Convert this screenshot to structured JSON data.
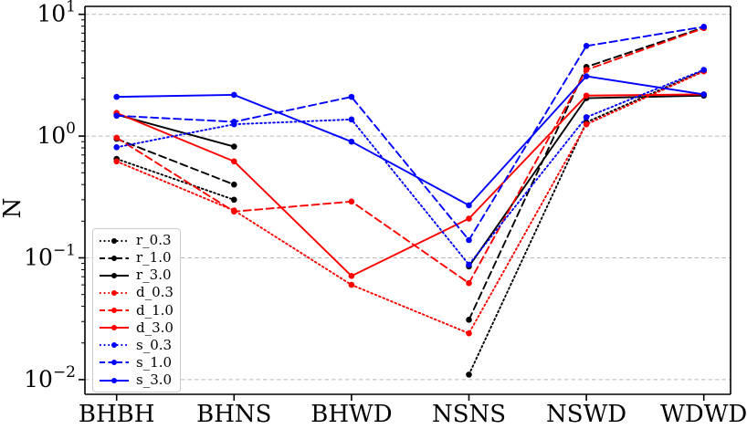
{
  "chart_data": {
    "type": "line",
    "title": "",
    "xlabel": "",
    "ylabel": "N",
    "yscale": "log",
    "ylim": [
      0.0076,
      11.6
    ],
    "y_tick_exponents": [
      1,
      0,
      -1,
      -2
    ],
    "grid": "horizontal dashed gridlines at powers of ten",
    "legend_position": "lower left",
    "categories": [
      "BHBH",
      "BHNS",
      "BHWD",
      "NSNS",
      "NSWD",
      "WDWD"
    ],
    "series": [
      {
        "name": "r_0.3",
        "color": "#000000",
        "style": "dotted",
        "values": [
          0.65,
          0.3,
          null,
          0.011,
          1.3,
          3.45
        ]
      },
      {
        "name": "r_1.0",
        "color": "#000000",
        "style": "dashed",
        "values": [
          0.95,
          0.4,
          null,
          0.031,
          3.7,
          7.8
        ]
      },
      {
        "name": "r_3.0",
        "color": "#000000",
        "style": "solid",
        "values": [
          1.5,
          0.82,
          null,
          0.085,
          2.05,
          2.15
        ]
      },
      {
        "name": "d_0.3",
        "color": "#ff0000",
        "style": "dotted",
        "values": [
          0.62,
          0.245,
          0.06,
          0.024,
          1.25,
          3.4
        ]
      },
      {
        "name": "d_1.0",
        "color": "#ff0000",
        "style": "dashed",
        "values": [
          0.97,
          0.24,
          0.29,
          0.062,
          3.5,
          7.7
        ]
      },
      {
        "name": "d_3.0",
        "color": "#ff0000",
        "style": "solid",
        "values": [
          1.55,
          0.62,
          0.071,
          0.21,
          2.15,
          2.2
        ]
      },
      {
        "name": "s_0.3",
        "color": "#0000ff",
        "style": "dotted",
        "values": [
          0.81,
          1.25,
          1.37,
          0.088,
          1.43,
          3.5
        ]
      },
      {
        "name": "s_1.0",
        "color": "#0000ff",
        "style": "dashed",
        "values": [
          1.47,
          1.31,
          2.1,
          0.14,
          5.5,
          7.9
        ]
      },
      {
        "name": "s_3.0",
        "color": "#0000ff",
        "style": "solid",
        "values": [
          2.1,
          2.18,
          0.9,
          0.27,
          3.1,
          2.2
        ]
      }
    ],
    "colors": {
      "grid": "#b9b9b9",
      "axis": "#000000"
    }
  }
}
